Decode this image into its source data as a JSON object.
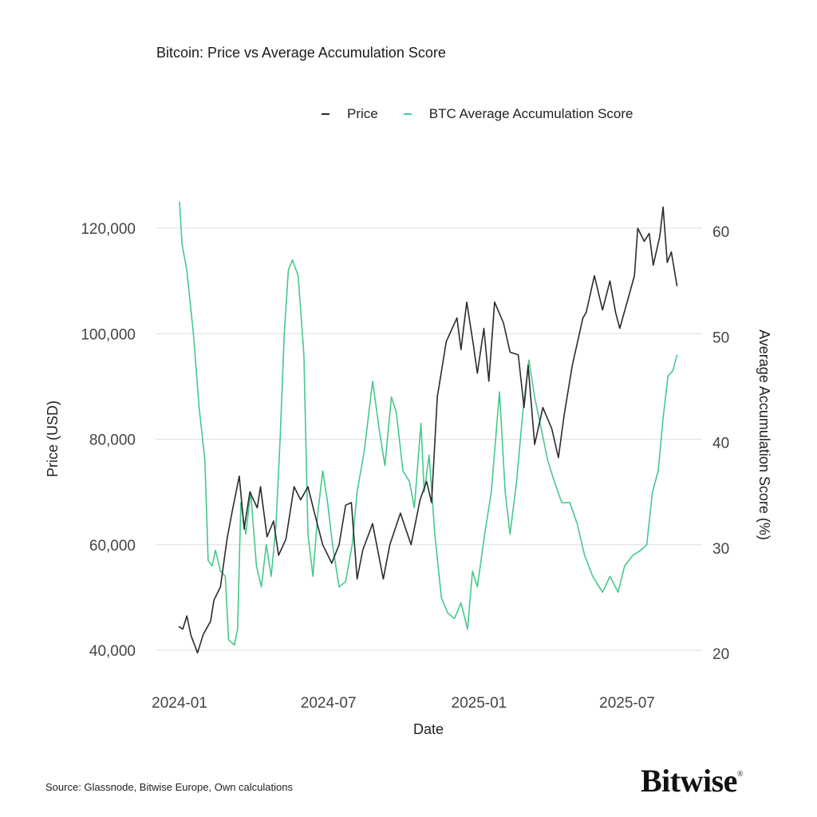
{
  "chart_data": {
    "type": "line",
    "title": "Bitcoin: Price vs Average Accumulation Score",
    "xlabel": "Date",
    "ylabel": "Price (USD)",
    "y2label": "Average Accumulation Score (%)",
    "xticks": [
      "2024-01",
      "2024-07",
      "2025-01",
      "2025-07"
    ],
    "yticks": [
      "40,000",
      "60,000",
      "80,000",
      "100,000",
      "120,000"
    ],
    "y2ticks": [
      "20",
      "30",
      "40",
      "50",
      "60"
    ],
    "ylim": [
      40000,
      120000
    ],
    "y2lim": [
      20,
      60
    ],
    "grid": true,
    "legend_placement": "top-right",
    "colors": {
      "price": "#2b2b2b",
      "score": "#46c98a",
      "grid": "#dddddd"
    },
    "series": [
      {
        "name": "Price",
        "axis": "left",
        "points": [
          [
            "2023-12-31",
            44500
          ],
          [
            "2024-01-05",
            44000
          ],
          [
            "2024-01-10",
            46500
          ],
          [
            "2024-01-15",
            42800
          ],
          [
            "2024-01-23",
            39500
          ],
          [
            "2024-01-30",
            43000
          ],
          [
            "2024-02-08",
            45500
          ],
          [
            "2024-02-12",
            49500
          ],
          [
            "2024-02-20",
            52000
          ],
          [
            "2024-02-28",
            61000
          ],
          [
            "2024-03-05",
            66000
          ],
          [
            "2024-03-14",
            73000
          ],
          [
            "2024-03-20",
            63000
          ],
          [
            "2024-03-27",
            70000
          ],
          [
            "2024-04-05",
            67000
          ],
          [
            "2024-04-09",
            71000
          ],
          [
            "2024-04-17",
            61500
          ],
          [
            "2024-04-25",
            64500
          ],
          [
            "2024-05-01",
            58000
          ],
          [
            "2024-05-10",
            61000
          ],
          [
            "2024-05-20",
            71000
          ],
          [
            "2024-05-28",
            68500
          ],
          [
            "2024-06-06",
            71000
          ],
          [
            "2024-06-14",
            66000
          ],
          [
            "2024-06-24",
            60000
          ],
          [
            "2024-07-05",
            56500
          ],
          [
            "2024-07-14",
            60000
          ],
          [
            "2024-07-22",
            67500
          ],
          [
            "2024-07-29",
            68000
          ],
          [
            "2024-08-05",
            53500
          ],
          [
            "2024-08-12",
            59000
          ],
          [
            "2024-08-24",
            64000
          ],
          [
            "2024-09-06",
            53500
          ],
          [
            "2024-09-14",
            60000
          ],
          [
            "2024-09-27",
            66000
          ],
          [
            "2024-10-10",
            60000
          ],
          [
            "2024-10-21",
            68500
          ],
          [
            "2024-10-29",
            72000
          ],
          [
            "2024-11-04",
            68000
          ],
          [
            "2024-11-11",
            88000
          ],
          [
            "2024-11-22",
            98500
          ],
          [
            "2024-12-05",
            103000
          ],
          [
            "2024-12-10",
            97000
          ],
          [
            "2024-12-17",
            106000
          ],
          [
            "2024-12-25",
            98000
          ],
          [
            "2024-12-30",
            92500
          ],
          [
            "2025-01-07",
            101000
          ],
          [
            "2025-01-13",
            91000
          ],
          [
            "2025-01-20",
            106000
          ],
          [
            "2025-01-31",
            102000
          ],
          [
            "2025-02-08",
            96500
          ],
          [
            "2025-02-18",
            96000
          ],
          [
            "2025-02-25",
            86000
          ],
          [
            "2025-03-02",
            94000
          ],
          [
            "2025-03-10",
            79000
          ],
          [
            "2025-03-20",
            86000
          ],
          [
            "2025-03-31",
            82000
          ],
          [
            "2025-04-08",
            76500
          ],
          [
            "2025-04-15",
            84500
          ],
          [
            "2025-04-25",
            94000
          ],
          [
            "2025-05-08",
            103000
          ],
          [
            "2025-05-12",
            104000
          ],
          [
            "2025-05-22",
            111000
          ],
          [
            "2025-06-01",
            104500
          ],
          [
            "2025-06-10",
            110000
          ],
          [
            "2025-06-17",
            104000
          ],
          [
            "2025-06-22",
            101000
          ],
          [
            "2025-07-01",
            106000
          ],
          [
            "2025-07-10",
            111000
          ],
          [
            "2025-07-14",
            120000
          ],
          [
            "2025-07-22",
            117500
          ],
          [
            "2025-07-28",
            119000
          ],
          [
            "2025-08-02",
            113000
          ],
          [
            "2025-08-10",
            118500
          ],
          [
            "2025-08-14",
            124000
          ],
          [
            "2025-08-19",
            113500
          ],
          [
            "2025-08-24",
            115500
          ],
          [
            "2025-08-31",
            109000
          ]
        ]
      },
      {
        "name": "BTC Average Accumulation Score",
        "axis": "right",
        "points": [
          [
            "2024-01-01",
            62.5
          ],
          [
            "2024-01-04",
            58.5
          ],
          [
            "2024-01-10",
            56
          ],
          [
            "2024-01-18",
            50
          ],
          [
            "2024-01-25",
            43
          ],
          [
            "2024-02-01",
            38
          ],
          [
            "2024-02-05",
            28.5
          ],
          [
            "2024-02-10",
            28
          ],
          [
            "2024-02-14",
            29.5
          ],
          [
            "2024-02-20",
            27.5
          ],
          [
            "2024-02-26",
            27
          ],
          [
            "2024-03-01",
            21
          ],
          [
            "2024-03-08",
            20.5
          ],
          [
            "2024-03-12",
            22
          ],
          [
            "2024-03-16",
            34
          ],
          [
            "2024-03-22",
            31
          ],
          [
            "2024-03-28",
            35
          ],
          [
            "2024-04-04",
            28
          ],
          [
            "2024-04-10",
            26
          ],
          [
            "2024-04-16",
            30
          ],
          [
            "2024-04-22",
            27
          ],
          [
            "2024-04-28",
            32
          ],
          [
            "2024-05-03",
            40
          ],
          [
            "2024-05-08",
            50
          ],
          [
            "2024-05-13",
            56
          ],
          [
            "2024-05-18",
            57
          ],
          [
            "2024-05-25",
            55.5
          ],
          [
            "2024-06-01",
            48
          ],
          [
            "2024-06-06",
            31
          ],
          [
            "2024-06-12",
            27
          ],
          [
            "2024-06-18",
            33
          ],
          [
            "2024-06-24",
            37
          ],
          [
            "2024-06-30",
            34
          ],
          [
            "2024-07-06",
            30
          ],
          [
            "2024-07-14",
            26
          ],
          [
            "2024-07-22",
            26.5
          ],
          [
            "2024-07-30",
            30
          ],
          [
            "2024-08-05",
            35
          ],
          [
            "2024-08-14",
            39
          ],
          [
            "2024-08-24",
            45.5
          ],
          [
            "2024-09-01",
            41
          ],
          [
            "2024-09-08",
            37.5
          ],
          [
            "2024-09-16",
            44
          ],
          [
            "2024-09-22",
            42.5
          ],
          [
            "2024-09-30",
            37
          ],
          [
            "2024-10-08",
            36
          ],
          [
            "2024-10-14",
            33.5
          ],
          [
            "2024-10-22",
            41.5
          ],
          [
            "2024-10-26",
            35
          ],
          [
            "2024-11-01",
            38.5
          ],
          [
            "2024-11-08",
            31
          ],
          [
            "2024-11-16",
            25
          ],
          [
            "2024-11-24",
            23.5
          ],
          [
            "2024-12-02",
            23
          ],
          [
            "2024-12-10",
            24.5
          ],
          [
            "2024-12-18",
            22
          ],
          [
            "2024-12-24",
            27.5
          ],
          [
            "2024-12-30",
            26
          ],
          [
            "2025-01-08",
            31
          ],
          [
            "2025-01-16",
            35
          ],
          [
            "2025-01-26",
            44.5
          ],
          [
            "2025-02-02",
            35
          ],
          [
            "2025-02-08",
            31
          ],
          [
            "2025-02-16",
            36
          ],
          [
            "2025-02-24",
            43
          ],
          [
            "2025-03-03",
            47.5
          ],
          [
            "2025-03-10",
            44
          ],
          [
            "2025-03-18",
            41
          ],
          [
            "2025-03-26",
            38
          ],
          [
            "2025-04-03",
            36
          ],
          [
            "2025-04-12",
            34
          ],
          [
            "2025-04-22",
            34
          ],
          [
            "2025-05-01",
            32
          ],
          [
            "2025-05-10",
            29
          ],
          [
            "2025-05-20",
            27
          ],
          [
            "2025-06-01",
            25.5
          ],
          [
            "2025-06-10",
            27
          ],
          [
            "2025-06-20",
            25.5
          ],
          [
            "2025-06-28",
            28
          ],
          [
            "2025-07-08",
            29
          ],
          [
            "2025-07-18",
            29.5
          ],
          [
            "2025-07-25",
            30
          ],
          [
            "2025-08-01",
            35
          ],
          [
            "2025-08-08",
            37
          ],
          [
            "2025-08-14",
            42
          ],
          [
            "2025-08-20",
            46
          ],
          [
            "2025-08-26",
            46.5
          ],
          [
            "2025-08-31",
            48
          ]
        ]
      }
    ]
  },
  "footer": {
    "source": "Source: Glassnode, Bitwise Europe, Own calculations",
    "logo": "Bitwise",
    "logo_mark": "®"
  }
}
